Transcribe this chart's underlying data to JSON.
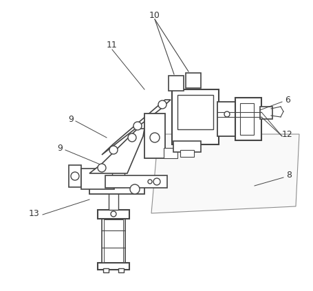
{
  "bg_color": "#ffffff",
  "line_color": "#444444",
  "label_color": "#333333",
  "figsize": [
    4.55,
    4.23
  ],
  "dpi": 100
}
